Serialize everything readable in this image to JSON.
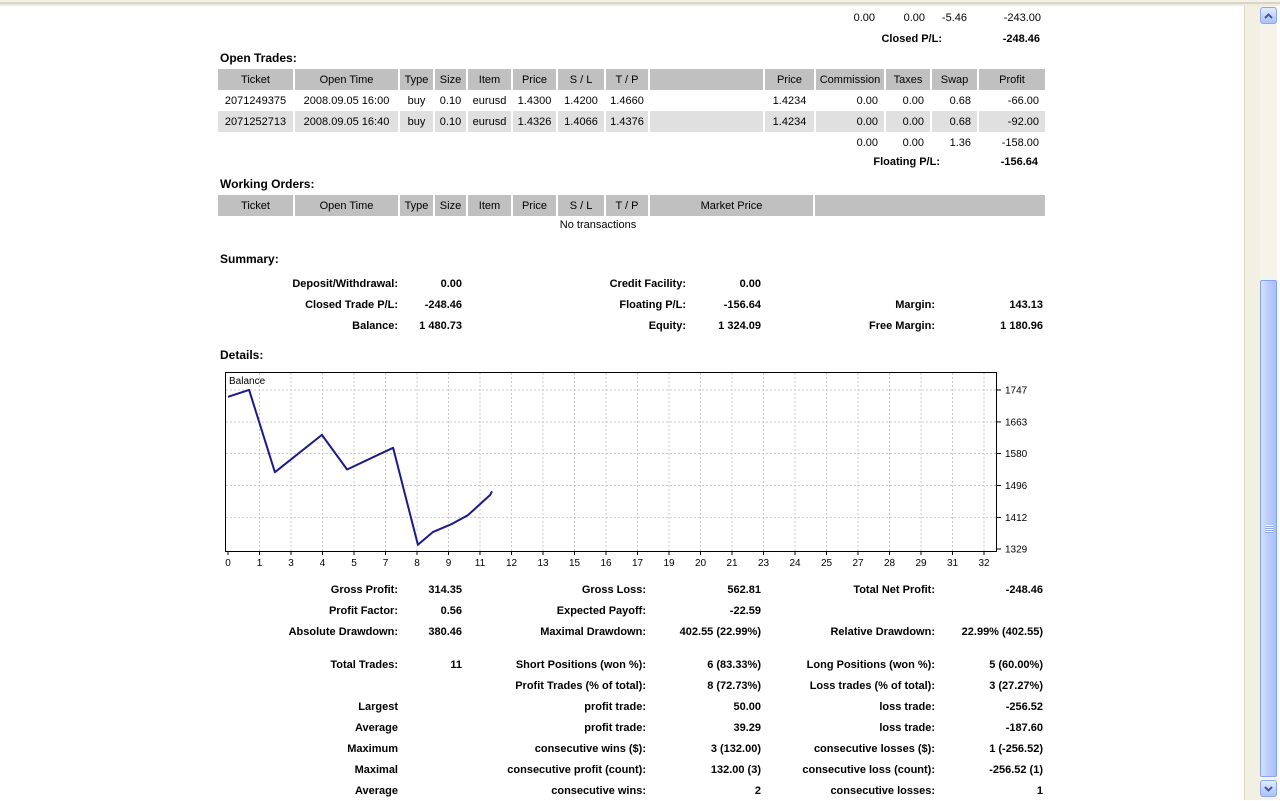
{
  "closed_section": {
    "partial_row": [
      "0.00",
      "0.00",
      "-5.46",
      "-243.00"
    ],
    "closed_pl_label": "Closed P/L:",
    "closed_pl_value": "-248.46"
  },
  "open_trades": {
    "title": "Open Trades:",
    "headers": [
      "Ticket",
      "Open Time",
      "Type",
      "Size",
      "Item",
      "Price",
      "S / L",
      "T / P",
      "",
      "Price",
      "Commission",
      "Taxes",
      "Swap",
      "Profit"
    ],
    "rows": [
      [
        "2071249375",
        "2008.09.05 16:00",
        "buy",
        "0.10",
        "eurusd",
        "1.4300",
        "1.4200",
        "1.4660",
        "",
        "1.4234",
        "0.00",
        "0.00",
        "0.68",
        "-66.00"
      ],
      [
        "2071252713",
        "2008.09.05 16:40",
        "buy",
        "0.10",
        "eurusd",
        "1.4326",
        "1.4066",
        "1.4376",
        "",
        "1.4234",
        "0.00",
        "0.00",
        "0.68",
        "-92.00"
      ]
    ],
    "totals_row": [
      "0.00",
      "0.00",
      "1.36",
      "-158.00"
    ],
    "floating_pl_label": "Floating P/L:",
    "floating_pl_value": "-156.64"
  },
  "working_orders": {
    "title": "Working Orders:",
    "headers": [
      "Ticket",
      "Open Time",
      "Type",
      "Size",
      "Item",
      "Price",
      "S / L",
      "T / P",
      "Market Price",
      ""
    ],
    "empty_text": "No transactions"
  },
  "summary": {
    "title": "Summary:",
    "rows": [
      [
        "Deposit/Withdrawal:",
        "0.00",
        "Credit Facility:",
        "0.00",
        "",
        ""
      ],
      [
        "Closed Trade P/L:",
        "-248.46",
        "Floating P/L:",
        "-156.64",
        "Margin:",
        "143.13"
      ],
      [
        "Balance:",
        "1 480.73",
        "Equity:",
        "1 324.09",
        "Free Margin:",
        "1 180.96"
      ]
    ]
  },
  "details": {
    "title": "Details:"
  },
  "chart_data": {
    "type": "line",
    "series_label": "Balance",
    "points_slot_value": [
      [
        0,
        1729.19
      ],
      [
        0.67,
        1747.19
      ],
      [
        1.49,
        1531
      ],
      [
        2.98,
        1629
      ],
      [
        3.78,
        1538
      ],
      [
        5.24,
        1595
      ],
      [
        6.03,
        1340
      ],
      [
        6.51,
        1374
      ],
      [
        7.11,
        1395
      ],
      [
        7.62,
        1418
      ],
      [
        8.32,
        1471
      ],
      [
        8.38,
        1480.73
      ]
    ],
    "xtick_labels": [
      "0",
      "1",
      "3",
      "4",
      "5",
      "7",
      "8",
      "9",
      "11",
      "12",
      "13",
      "15",
      "16",
      "17",
      "19",
      "20",
      "21",
      "23",
      "24",
      "25",
      "27",
      "28",
      "29",
      "31",
      "32"
    ],
    "ytick_values": [
      1747,
      1663,
      1580,
      1496,
      1412,
      1329
    ],
    "grid": true,
    "legend_position": "top-left-inside",
    "line_color": "#1a1a8a"
  },
  "stats": {
    "block1": [
      [
        "Gross Profit:",
        "314.35",
        "Gross Loss:",
        "562.81",
        "Total Net Profit:",
        "-248.46"
      ],
      [
        "Profit Factor:",
        "0.56",
        "Expected Payoff:",
        "-22.59",
        "",
        ""
      ],
      [
        "Absolute Drawdown:",
        "380.46",
        "Maximal Drawdown:",
        "402.55 (22.99%)",
        "Relative Drawdown:",
        "22.99% (402.55)"
      ]
    ],
    "block2": [
      [
        "Total Trades:",
        "11",
        "Short Positions (won %):",
        "6 (83.33%)",
        "Long Positions (won %):",
        "5 (60.00%)"
      ],
      [
        "",
        "",
        "Profit Trades (% of total):",
        "8 (72.73%)",
        "Loss trades (% of total):",
        "3 (27.27%)"
      ],
      [
        "Largest",
        "",
        "profit trade:",
        "50.00",
        "loss trade:",
        "-256.52"
      ],
      [
        "Average",
        "",
        "profit trade:",
        "39.29",
        "loss trade:",
        "-187.60"
      ],
      [
        "Maximum",
        "",
        "consecutive wins ($):",
        "3 (132.00)",
        "consecutive losses ($):",
        "1 (-256.52)"
      ],
      [
        "Maximal",
        "",
        "consecutive profit (count):",
        "132.00 (3)",
        "consecutive loss (count):",
        "-256.52 (1)"
      ],
      [
        "Average",
        "",
        "consecutive wins:",
        "2",
        "consecutive losses:",
        "1"
      ]
    ]
  },
  "colors": {
    "table_header_bg": "#c0c0c0",
    "row_stripe_bg": "#e0e0e0",
    "chart_line": "#1a1a8a",
    "chart_grid": "#c9c9c9",
    "scrollbar_thumb": "#a9c0f8",
    "window_strip": "#d9d5c4"
  }
}
